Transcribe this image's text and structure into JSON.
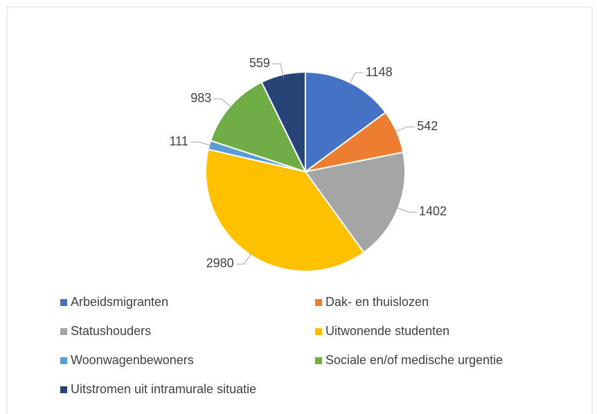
{
  "chart_data": {
    "type": "pie",
    "categories": [
      "Arbeidsmigranten",
      "Dak- en thuislozen",
      "Statushouders",
      "Uitwonende studenten",
      "Woonwagenbewoners",
      "Sociale en/of medische urgentie",
      "Uitstromen uit intramurale situatie"
    ],
    "values": [
      1148,
      542,
      1402,
      2980,
      111,
      983,
      559
    ],
    "colors": [
      "#4472c4",
      "#ed7d31",
      "#a5a5a5",
      "#ffc000",
      "#5b9bd5",
      "#70ad47",
      "#264478"
    ],
    "legend": "bottom"
  }
}
